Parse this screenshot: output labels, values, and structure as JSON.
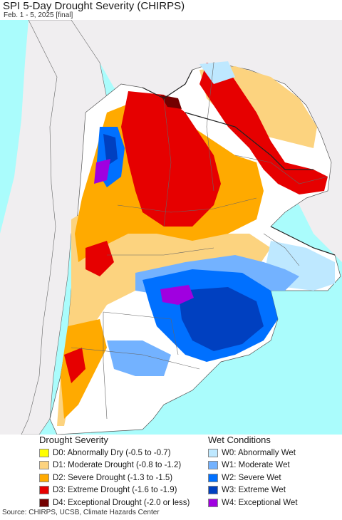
{
  "title": "SPI 5-Day Drought Severity (CHIRPS)",
  "subtitle": "Feb. 1 - 5, 2025 [final]",
  "source": "Source: CHIRPS, UCSB, Climate Hazards Center",
  "colors": {
    "ocean": "#aafcfc",
    "neighbor_land": "#f0eef0",
    "no_data_land": "#ffffff",
    "border": "#666666"
  },
  "legend": {
    "drought": {
      "heading": "Drought Severity",
      "items": [
        {
          "code": "D0",
          "label": "D0: Abnormally Dry (-0.5 to -0.7)",
          "color": "#ffff00"
        },
        {
          "code": "D1",
          "label": "D1: Moderate Drought (-0.8 to -1.2)",
          "color": "#fcd37f"
        },
        {
          "code": "D2",
          "label": "D2: Severe Drought (-1.3 to -1.5)",
          "color": "#ffaa00"
        },
        {
          "code": "D3",
          "label": "D3: Extreme Drought (-1.6 to -1.9)",
          "color": "#e60000"
        },
        {
          "code": "D4",
          "label": "D4: Exceptional Drought (-2.0 or less)",
          "color": "#730000"
        }
      ]
    },
    "wet": {
      "heading": "Wet Conditions",
      "items": [
        {
          "code": "W0",
          "label": "W0: Abnormally Wet",
          "color": "#bee8ff"
        },
        {
          "code": "W1",
          "label": "W1: Moderate Wet",
          "color": "#73b2ff"
        },
        {
          "code": "W2",
          "label": "W2: Severe Wet",
          "color": "#0070ff"
        },
        {
          "code": "W3",
          "label": "W3: Extreme Wet",
          "color": "#0040c0"
        },
        {
          "code": "W4",
          "label": "W4: Exceptional Wet",
          "color": "#a000e0"
        }
      ]
    }
  }
}
